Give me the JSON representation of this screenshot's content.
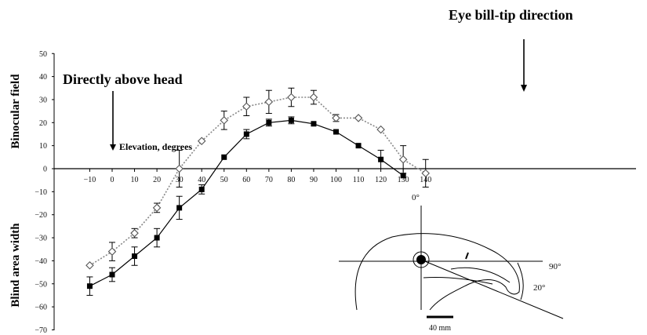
{
  "chart_data": {
    "type": "line",
    "x": [
      -10,
      0,
      10,
      20,
      30,
      40,
      50,
      60,
      70,
      80,
      90,
      100,
      110,
      120,
      130,
      140
    ],
    "x_ticks": [
      "−10",
      "0",
      "10",
      "20",
      "30",
      "40",
      "50",
      "60",
      "70",
      "80",
      "90",
      "100",
      "110",
      "120",
      "130",
      "140"
    ],
    "y_ticks": [
      "50",
      "40",
      "30",
      "20",
      "10",
      "0",
      "−10",
      "−20",
      "−30",
      "−40",
      "−50",
      "−60",
      "−70"
    ],
    "ylim": [
      -70,
      50
    ],
    "xlim": [
      -15,
      145
    ],
    "series": [
      {
        "style": "dotted",
        "marker": "open-diamond",
        "color": "#888888",
        "points": [
          {
            "x": -10,
            "y": -42,
            "err": 0
          },
          {
            "x": 0,
            "y": -36,
            "err": 4
          },
          {
            "x": 10,
            "y": -28,
            "err": 2
          },
          {
            "x": 20,
            "y": -17,
            "err": 2
          },
          {
            "x": 30,
            "y": 0,
            "err": 8
          },
          {
            "x": 40,
            "y": 12,
            "err": 0
          },
          {
            "x": 50,
            "y": 21,
            "err": 4
          },
          {
            "x": 60,
            "y": 27,
            "err": 4
          },
          {
            "x": 70,
            "y": 29,
            "err": 5
          },
          {
            "x": 80,
            "y": 31,
            "err": 4
          },
          {
            "x": 90,
            "y": 31,
            "err": 3
          },
          {
            "x": 100,
            "y": 22,
            "err": 1.5
          },
          {
            "x": 110,
            "y": 22,
            "err": 0
          },
          {
            "x": 120,
            "y": 17,
            "err": 0
          },
          {
            "x": 130,
            "y": 4,
            "err": 6
          },
          {
            "x": 140,
            "y": -2,
            "err": 6
          }
        ]
      },
      {
        "style": "solid",
        "marker": "filled-square",
        "color": "#000000",
        "points": [
          {
            "x": -10,
            "y": -51,
            "err": 4
          },
          {
            "x": 0,
            "y": -46,
            "err": 3
          },
          {
            "x": 10,
            "y": -38,
            "err": 4
          },
          {
            "x": 20,
            "y": -30,
            "err": 4
          },
          {
            "x": 30,
            "y": -17,
            "err": 5
          },
          {
            "x": 40,
            "y": -9,
            "err": 2
          },
          {
            "x": 50,
            "y": 5,
            "err": 0
          },
          {
            "x": 60,
            "y": 15,
            "err": 2
          },
          {
            "x": 70,
            "y": 20,
            "err": 1.5
          },
          {
            "x": 80,
            "y": 21,
            "err": 1.5
          },
          {
            "x": 90,
            "y": 19.5,
            "err": 0
          },
          {
            "x": 100,
            "y": 16,
            "err": 0
          },
          {
            "x": 110,
            "y": 10,
            "err": 0
          },
          {
            "x": 120,
            "y": 4,
            "err": 4
          },
          {
            "x": 130,
            "y": -3,
            "err": 0
          }
        ]
      }
    ],
    "ylabel_upper": "Binocular field",
    "ylabel_lower": "Blind area width",
    "annotations": {
      "above_head": "Directly above head",
      "elevation": "Elevation, degrees",
      "bill_tip": "Eye bill-tip direction"
    },
    "grid": false
  },
  "inset": {
    "label_0": "0°",
    "label_90": "90°",
    "label_20": "20°",
    "scale_label": "40 mm"
  }
}
